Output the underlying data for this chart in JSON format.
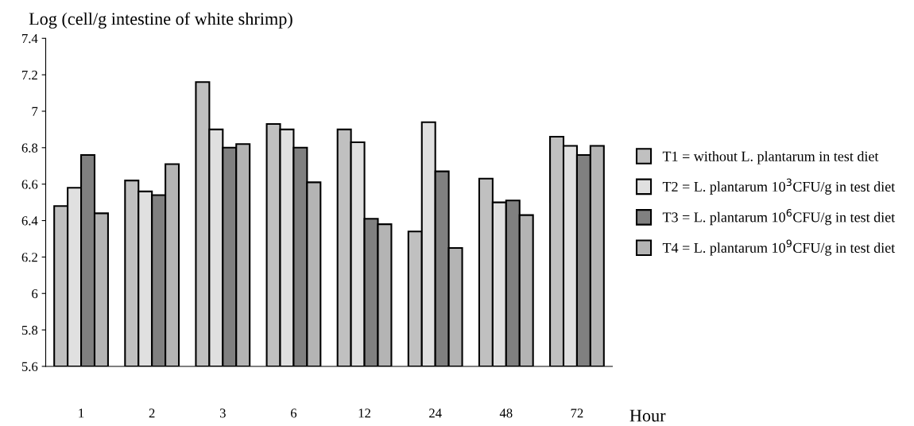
{
  "chart_data": {
    "type": "bar",
    "ylabel": "Log (cell/g intestine of white shrimp)",
    "xlabel": "Hour",
    "categories": [
      "1",
      "2",
      "3",
      "6",
      "12",
      "24",
      "48",
      "72"
    ],
    "series": [
      {
        "name": "T1 = without L. plantarum in test diet",
        "color": "#c0c0c0",
        "values": [
          6.48,
          6.62,
          7.16,
          6.93,
          6.9,
          6.34,
          6.63,
          6.86
        ]
      },
      {
        "name": "T2 = L. plantarum 10$^{3}$CFU/g in test diet",
        "color": "#e0e0e0",
        "values": [
          6.58,
          6.56,
          6.9,
          6.9,
          6.83,
          6.94,
          6.5,
          6.81
        ]
      },
      {
        "name": "T3 = L. plantarum 10$^{6}$CFU/g in test diet",
        "color": "#808080",
        "values": [
          6.76,
          6.54,
          6.8,
          6.8,
          6.41,
          6.67,
          6.51,
          6.76
        ]
      },
      {
        "name": "T4 = L. plantarum 10$^{9}$CFU/g in test diet",
        "color": "#b4b4b4",
        "values": [
          6.44,
          6.71,
          6.82,
          6.61,
          6.38,
          6.25,
          6.43,
          6.81
        ]
      }
    ],
    "ylim": [
      5.6,
      7.4
    ],
    "yticks": [
      5.6,
      5.8,
      6,
      6.2,
      6.4,
      6.6,
      6.8,
      7,
      7.2,
      7.4
    ],
    "legend": "right",
    "grid": false
  }
}
